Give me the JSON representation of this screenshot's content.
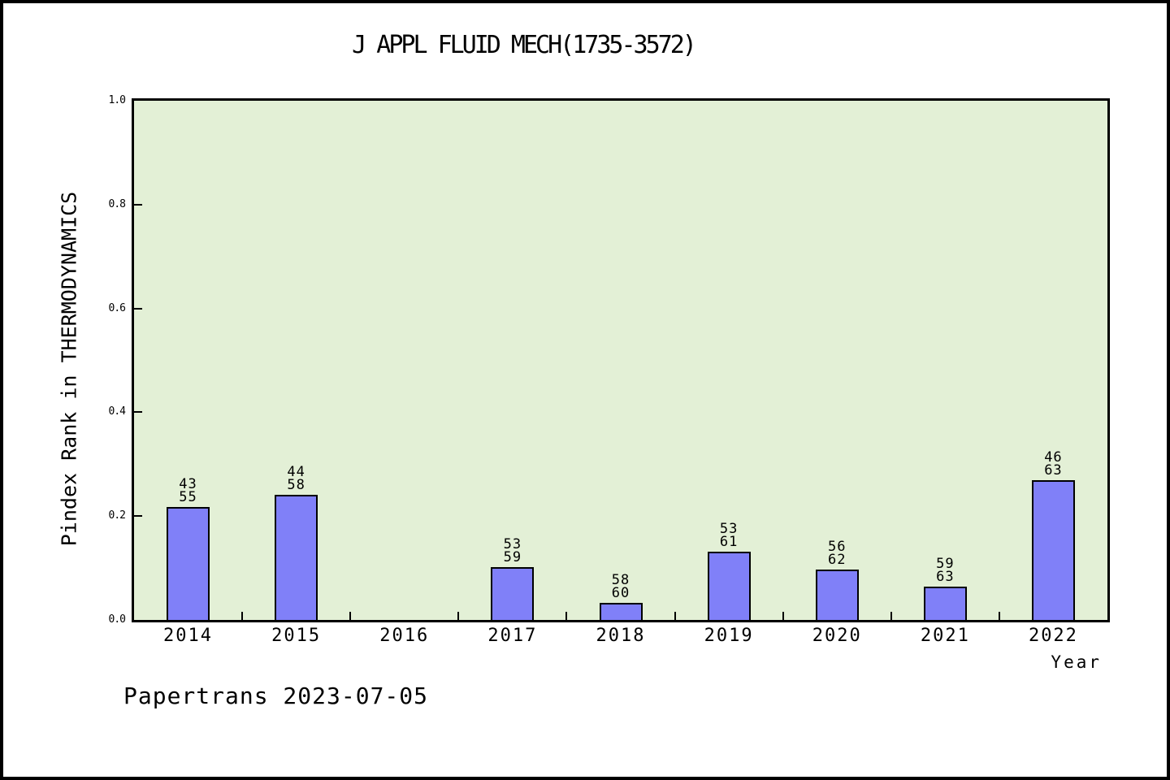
{
  "page": {
    "footer": "Papertrans 2023-07-05"
  },
  "chart_data": {
    "type": "bar",
    "title": "J APPL FLUID MECH(1735-3572)",
    "xlabel": "Year",
    "ylabel": "Pindex Rank in THERMODYNAMICS",
    "categories": [
      "2014",
      "2015",
      "2016",
      "2017",
      "2018",
      "2019",
      "2020",
      "2021",
      "2022"
    ],
    "values": [
      0.2182,
      0.2414,
      null,
      0.1017,
      0.0333,
      0.1311,
      0.0968,
      0.0635,
      0.2698
    ],
    "bar_labels": [
      [
        "43",
        "55"
      ],
      [
        "44",
        "58"
      ],
      null,
      [
        "53",
        "59"
      ],
      [
        "58",
        "60"
      ],
      [
        "53",
        "61"
      ],
      [
        "56",
        "62"
      ],
      [
        "59",
        "63"
      ],
      [
        "46",
        "63"
      ]
    ],
    "ytick_labels": [
      "0.0",
      "0.2",
      "0.4",
      "0.6",
      "0.8",
      "1.0"
    ],
    "ylim": [
      0,
      1
    ],
    "grid": false,
    "legend": false,
    "colors": {
      "bar_fill": "#8080F8",
      "bar_edge": "#000000",
      "plot_bg": "#E3F0D6",
      "axis": "#000000",
      "text": "#000000",
      "page_bg": "#FFFFFF"
    }
  }
}
